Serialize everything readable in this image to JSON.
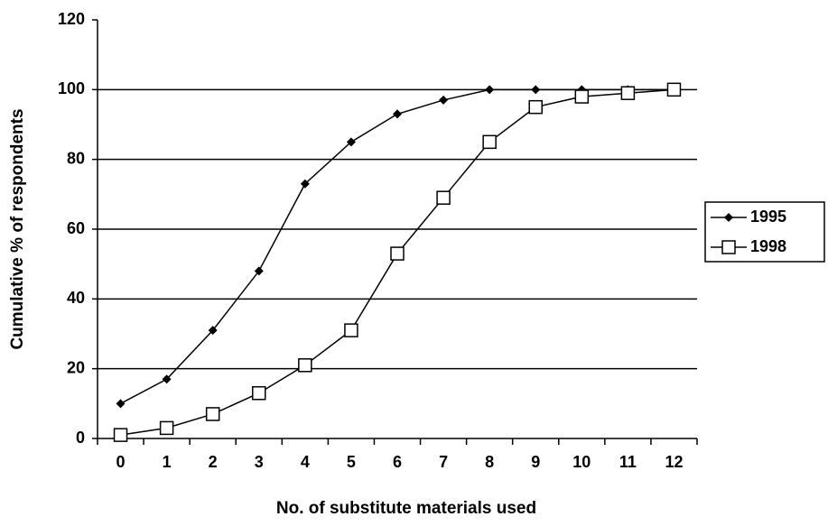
{
  "chart_data": {
    "type": "line",
    "x_label": "No. of substitute materials used",
    "y_label": "Cumulative % of respondents",
    "categories": [
      "0",
      "1",
      "2",
      "3",
      "4",
      "5",
      "6",
      "7",
      "8",
      "9",
      "10",
      "11",
      "12"
    ],
    "series": [
      {
        "name": "1995",
        "color": "#000000",
        "marker": "diamond",
        "values": [
          10,
          17,
          31,
          48,
          73,
          85,
          93,
          97,
          100,
          100,
          100,
          100,
          100
        ]
      },
      {
        "name": "1998",
        "color": "#000000",
        "marker": "square",
        "values": [
          1,
          3,
          7,
          13,
          21,
          31,
          53,
          69,
          85,
          95,
          98,
          99,
          100
        ]
      }
    ],
    "ylim": [
      0,
      120
    ],
    "yticks": [
      0,
      20,
      40,
      60,
      80,
      100,
      120
    ],
    "grid": true,
    "legend": "right"
  }
}
